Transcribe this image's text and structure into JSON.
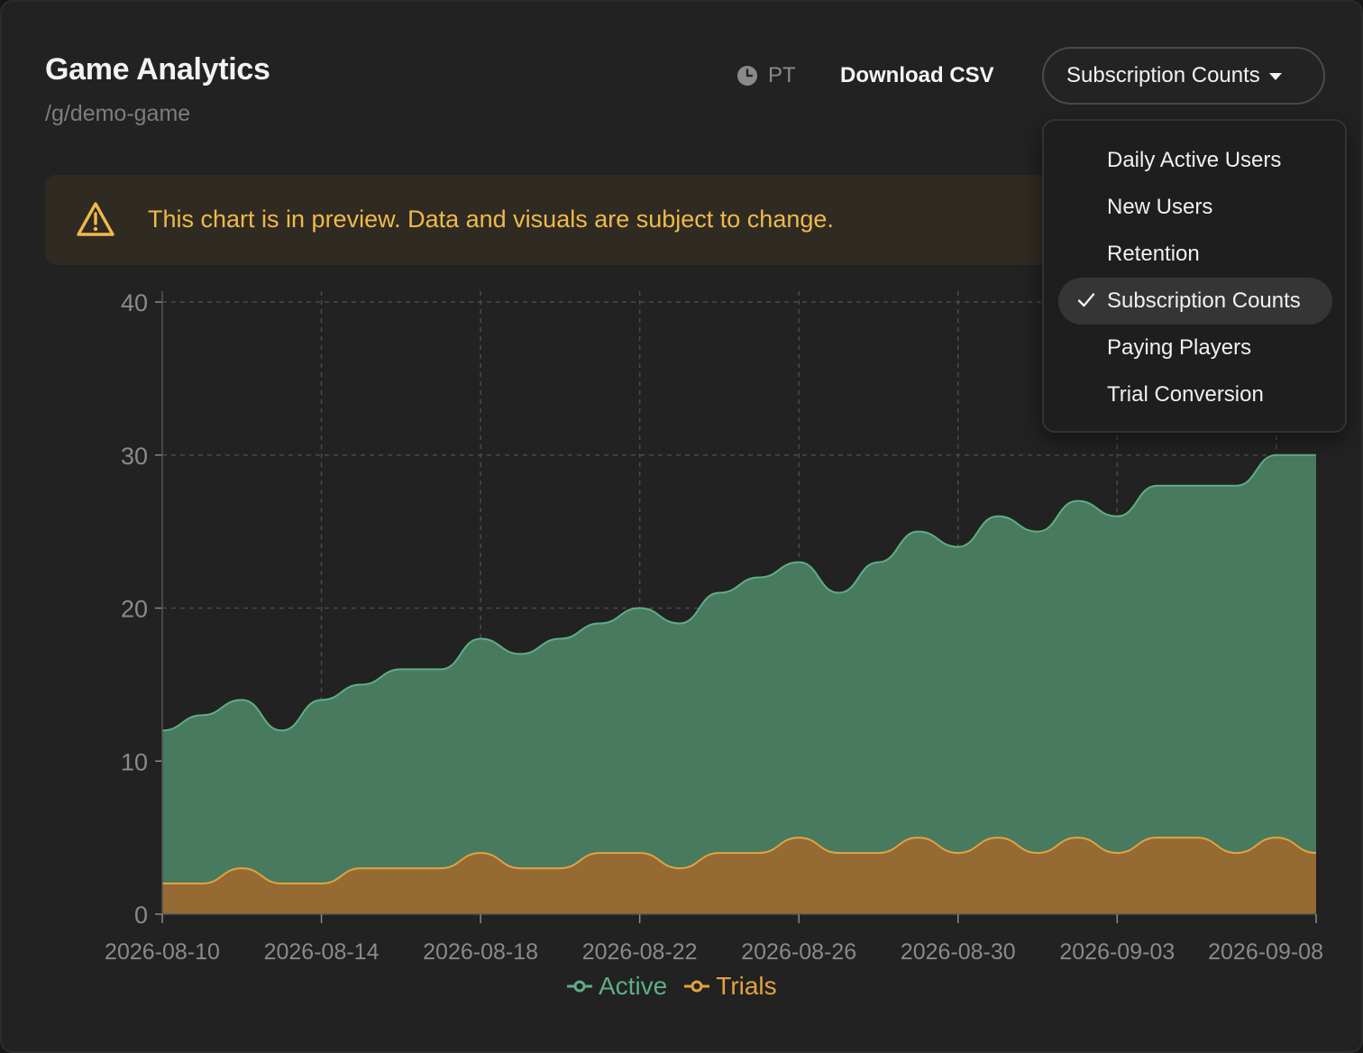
{
  "header": {
    "title": "Game Analytics",
    "path": "/g/demo-game",
    "timezone": "PT",
    "timezone_icon": "clock-icon",
    "download_label": "Download CSV",
    "metric_select": "Subscription Counts"
  },
  "banner": {
    "icon": "warning-triangle-icon",
    "text": "This chart is in preview. Data and visuals are subject to change."
  },
  "dropdown": {
    "selected_icon": "checkmark-icon",
    "options": [
      {
        "label": "Daily Active Users",
        "selected": false
      },
      {
        "label": "New Users",
        "selected": false
      },
      {
        "label": "Retention",
        "selected": false
      },
      {
        "label": "Subscription Counts",
        "selected": true
      },
      {
        "label": "Paying Players",
        "selected": false
      },
      {
        "label": "Trial Conversion",
        "selected": false
      }
    ]
  },
  "legend": {
    "active": "Active",
    "trials": "Trials"
  },
  "colors": {
    "active_stroke": "#5fae85",
    "active_fill": "#487a5f",
    "trials_stroke": "#e3a33d",
    "trials_fill": "#956a33",
    "warning": "#f0b94a"
  },
  "chart_data": {
    "type": "area",
    "x_tick_labels": [
      "2026-08-10",
      "2026-08-14",
      "2026-08-18",
      "2026-08-22",
      "2026-08-26",
      "2026-08-30",
      "2026-09-03",
      "2026-09-08"
    ],
    "y_tick_labels": [
      "0",
      "10",
      "20",
      "30",
      "40"
    ],
    "ylim": [
      0,
      40
    ],
    "xlim": [
      "2026-08-10",
      "2026-09-08"
    ],
    "grid": true,
    "legend_position": "bottom-center",
    "x": [
      "2026-08-10",
      "2026-08-11",
      "2026-08-12",
      "2026-08-13",
      "2026-08-14",
      "2026-08-15",
      "2026-08-16",
      "2026-08-17",
      "2026-08-18",
      "2026-08-19",
      "2026-08-20",
      "2026-08-21",
      "2026-08-22",
      "2026-08-23",
      "2026-08-24",
      "2026-08-25",
      "2026-08-26",
      "2026-08-27",
      "2026-08-28",
      "2026-08-29",
      "2026-08-30",
      "2026-08-31",
      "2026-09-01",
      "2026-09-02",
      "2026-09-03",
      "2026-09-04",
      "2026-09-05",
      "2026-09-06",
      "2026-09-07",
      "2026-09-08"
    ],
    "series": [
      {
        "name": "Active",
        "values": [
          12,
          13,
          14,
          12,
          14,
          15,
          16,
          16,
          18,
          17,
          18,
          19,
          20,
          19,
          21,
          22,
          23,
          21,
          23,
          25,
          24,
          26,
          25,
          27,
          26,
          28,
          28,
          28,
          30,
          30
        ]
      },
      {
        "name": "Trials",
        "values": [
          2,
          2,
          3,
          2,
          2,
          3,
          3,
          3,
          4,
          3,
          3,
          4,
          4,
          3,
          4,
          4,
          5,
          4,
          4,
          5,
          4,
          5,
          4,
          5,
          4,
          5,
          5,
          4,
          5,
          4
        ]
      }
    ]
  }
}
